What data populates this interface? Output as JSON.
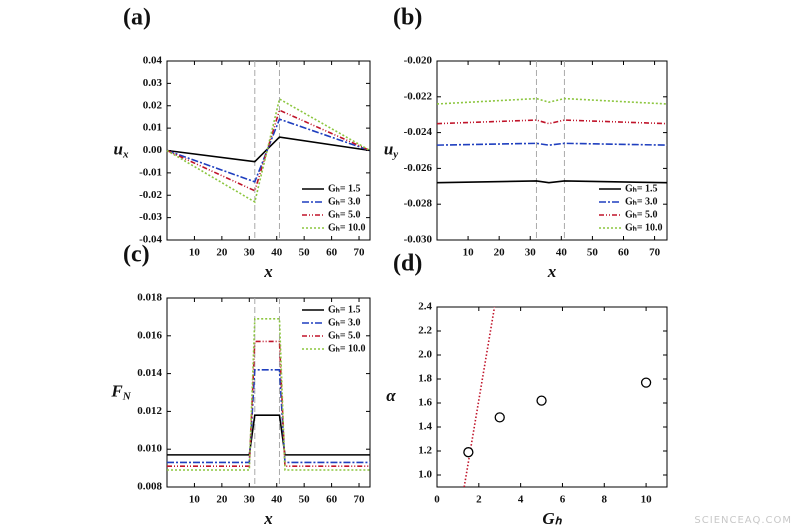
{
  "chart_data": [
    {
      "type": "line",
      "title": "(a)",
      "xlabel": "x",
      "ylabel": {
        "text": "u",
        "sub": "x"
      },
      "x": [
        0,
        32,
        41,
        74
      ],
      "series": [
        {
          "name": "Gₕ= 1.5",
          "color": "#000000",
          "values": [
            0,
            -0.005,
            0.006,
            0
          ]
        },
        {
          "name": "Gₕ= 3.0",
          "color": "#1f3fbf",
          "values": [
            0,
            -0.014,
            0.014,
            0
          ]
        },
        {
          "name": "Gₕ= 5.0",
          "color": "#c0142a",
          "values": [
            0,
            -0.018,
            0.018,
            0
          ]
        },
        {
          "name": "Gₕ= 10.0",
          "color": "#8cc63f",
          "values": [
            0,
            -0.023,
            0.023,
            0
          ]
        }
      ],
      "vlines": [
        32,
        41
      ],
      "xlim": [
        0,
        74
      ],
      "xticks": [
        10,
        20,
        30,
        40,
        50,
        60,
        70
      ],
      "ylim": [
        -0.04,
        0.04
      ],
      "yticks": [
        -0.04,
        -0.03,
        -0.02,
        -0.01,
        {
          "value": 0,
          "label": "0.00"
        },
        0.01,
        0.02,
        0.03,
        0.04
      ],
      "legend": "lower right"
    },
    {
      "type": "line",
      "title": "(b)",
      "xlabel": "x",
      "ylabel": {
        "text": "u",
        "sub": "y"
      },
      "x": [
        0,
        32,
        36,
        41,
        74
      ],
      "series": [
        {
          "name": "Gₕ= 1.5",
          "color": "#000000",
          "values": [
            -0.0268,
            -0.0267,
            -0.0268,
            -0.0267,
            -0.0268
          ]
        },
        {
          "name": "Gₕ= 3.0",
          "color": "#1f3fbf",
          "values": [
            -0.0247,
            -0.0246,
            -0.0247,
            -0.0246,
            -0.0247
          ]
        },
        {
          "name": "Gₕ= 5.0",
          "color": "#c0142a",
          "values": [
            -0.0235,
            -0.0233,
            -0.0235,
            -0.0233,
            -0.0235
          ]
        },
        {
          "name": "Gₕ= 10.0",
          "color": "#8cc63f",
          "values": [
            -0.0224,
            -0.0221,
            -0.0223,
            -0.0221,
            -0.0224
          ]
        }
      ],
      "vlines": [
        32,
        41
      ],
      "xlim": [
        0,
        74
      ],
      "xticks": [
        10,
        20,
        30,
        40,
        50,
        60,
        70
      ],
      "ylim": [
        -0.03,
        -0.02
      ],
      "yticks": [
        {
          "value": -0.03,
          "label": "-0.030"
        },
        -0.028,
        -0.026,
        -0.024,
        -0.022,
        {
          "value": -0.02,
          "label": "-0.020"
        }
      ],
      "legend": "lower right"
    },
    {
      "type": "line",
      "title": "(c)",
      "xlabel": "x",
      "ylabel": {
        "text": "F",
        "sub": "N"
      },
      "x": [
        0,
        30,
        32,
        41,
        43,
        74
      ],
      "series": [
        {
          "name": "Gₕ= 1.5",
          "color": "#000000",
          "values": [
            0.0097,
            0.0097,
            0.0118,
            0.0118,
            0.0097,
            0.0097
          ]
        },
        {
          "name": "Gₕ= 3.0",
          "color": "#1f3fbf",
          "values": [
            0.0093,
            0.0093,
            0.0142,
            0.0142,
            0.0093,
            0.0093
          ]
        },
        {
          "name": "Gₕ= 5.0",
          "color": "#c0142a",
          "values": [
            0.0091,
            0.0091,
            0.0157,
            0.0157,
            0.0091,
            0.0091
          ]
        },
        {
          "name": "Gₕ= 10.0",
          "color": "#8cc63f",
          "values": [
            0.0089,
            0.0089,
            0.0169,
            0.0169,
            0.0089,
            0.0089
          ]
        }
      ],
      "vlines": [
        32,
        41
      ],
      "xlim": [
        0,
        74
      ],
      "xticks": [
        10,
        20,
        30,
        40,
        50,
        60,
        70
      ],
      "ylim": [
        0.008,
        0.018
      ],
      "yticks": [
        0.008,
        {
          "value": 0.01,
          "label": "0.010"
        },
        0.012,
        0.014,
        0.016,
        0.018
      ],
      "legend": "upper right"
    },
    {
      "type": "scatter",
      "title": "(d)",
      "xlabel": "Gₕ",
      "ylabel": {
        "text": "α",
        "sub": ""
      },
      "points": {
        "x": [
          1.5,
          3,
          5,
          10
        ],
        "values": [
          1.19,
          1.48,
          1.62,
          1.77
        ],
        "color": "#000000"
      },
      "line": {
        "x": [
          1.3,
          2.75
        ],
        "values": [
          0.9,
          2.4
        ],
        "color": "#c0142a"
      },
      "xlim": [
        0,
        11
      ],
      "xticks": [
        0,
        2,
        4,
        6,
        8,
        10
      ],
      "ylim": [
        0.9,
        2.4
      ],
      "yticks": [
        {
          "value": 1,
          "label": "1.0"
        },
        1.2,
        1.4,
        1.6,
        1.8,
        {
          "value": 2,
          "label": "2.0"
        },
        2.2,
        2.4
      ]
    }
  ],
  "watermark": "SCIENCEAQ.COM"
}
